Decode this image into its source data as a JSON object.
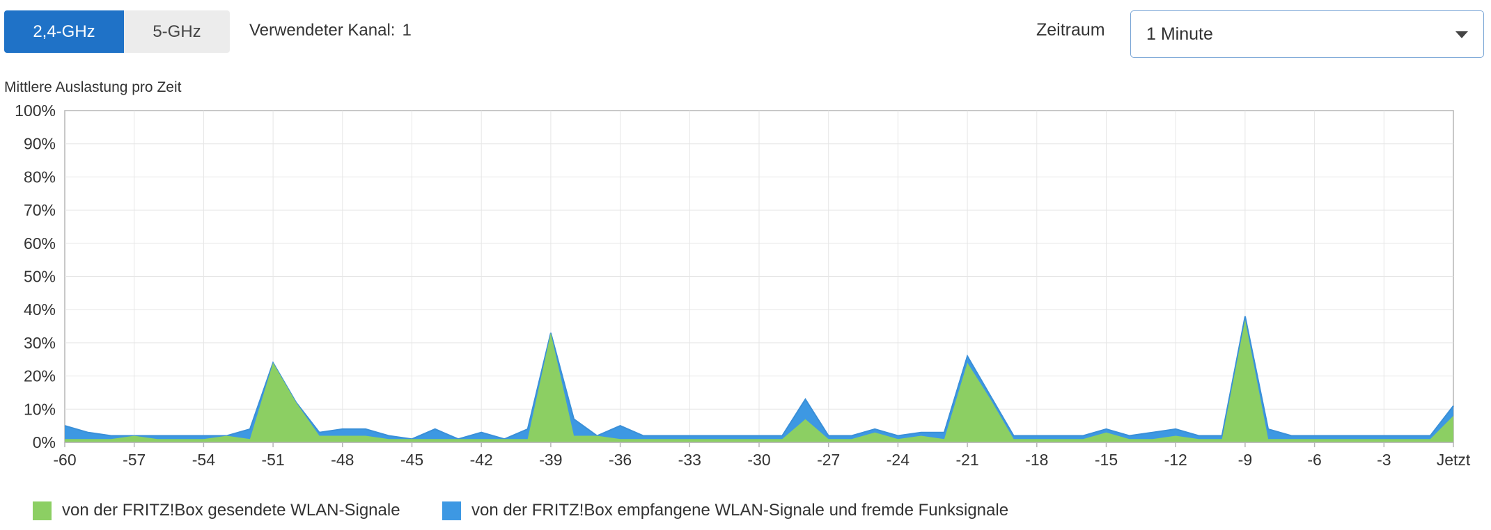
{
  "bands": {
    "active_label": "2,4-GHz",
    "inactive_label": "5-GHz"
  },
  "channel": {
    "label": "Verwendeter Kanal:",
    "value": "1"
  },
  "period": {
    "label": "Zeitraum",
    "selected": "1 Minute"
  },
  "colors": {
    "green": "#8ccf63",
    "blue": "#3d98e3",
    "blue_line": "#3a8fd8",
    "active_tab": "#1f72c7",
    "grid": "#e6e6e6",
    "axis": "#b5b5b5"
  },
  "chart_data": {
    "type": "area",
    "title": "Mittlere Auslastung pro Zeit",
    "xlim": [
      -60,
      0
    ],
    "ylim": [
      0,
      100
    ],
    "x_ticks": [
      -60,
      -57,
      -54,
      -51,
      -48,
      -45,
      -42,
      -39,
      -36,
      -33,
      -30,
      -27,
      -24,
      -21,
      -18,
      -15,
      -12,
      -9,
      -6,
      -3,
      0
    ],
    "x_tick_labels": [
      "-60",
      "-57",
      "-54",
      "-51",
      "-48",
      "-45",
      "-42",
      "-39",
      "-36",
      "-33",
      "-30",
      "-27",
      "-24",
      "-21",
      "-18",
      "-15",
      "-12",
      "-9",
      "-6",
      "-3",
      "Jetzt"
    ],
    "y_ticks": [
      0,
      10,
      20,
      30,
      40,
      50,
      60,
      70,
      80,
      90,
      100
    ],
    "y_tick_labels": [
      "0%",
      "10%",
      "20%",
      "30%",
      "40%",
      "50%",
      "60%",
      "70%",
      "80%",
      "90%",
      "100%"
    ],
    "x": [
      -60,
      -59,
      -58,
      -57,
      -56,
      -55,
      -54,
      -53,
      -52,
      -51,
      -50,
      -49,
      -48,
      -47,
      -46,
      -45,
      -44,
      -43,
      -42,
      -41,
      -40,
      -39,
      -38,
      -37,
      -36,
      -35,
      -34,
      -33,
      -32,
      -31,
      -30,
      -29,
      -28,
      -27,
      -26,
      -25,
      -24,
      -23,
      -22,
      -21,
      -20,
      -19,
      -18,
      -17,
      -16,
      -15,
      -14,
      -13,
      -12,
      -11,
      -10,
      -9,
      -8,
      -7,
      -6,
      -5,
      -4,
      -3,
      -2,
      -1,
      0
    ],
    "series": [
      {
        "name": "von der FRITZ!Box gesendete WLAN-Signale",
        "color": "#8ccf63",
        "values": [
          1,
          1,
          1,
          2,
          1,
          1,
          1,
          2,
          1,
          24,
          12,
          2,
          2,
          2,
          1,
          1,
          1,
          1,
          1,
          1,
          1,
          33,
          2,
          2,
          1,
          1,
          1,
          1,
          1,
          1,
          1,
          1,
          7,
          1,
          1,
          3,
          1,
          2,
          1,
          24,
          13,
          1,
          1,
          1,
          1,
          3,
          1,
          1,
          2,
          1,
          1,
          37,
          1,
          1,
          1,
          1,
          1,
          1,
          1,
          1,
          8
        ]
      },
      {
        "name": "von der FRITZ!Box empfangene WLAN-Signale und fremde Funksignale",
        "color": "#3d98e3",
        "values": [
          5,
          3,
          2,
          2,
          2,
          2,
          2,
          2,
          4,
          24,
          12,
          3,
          4,
          4,
          2,
          1,
          4,
          1,
          3,
          1,
          4,
          33,
          7,
          2,
          5,
          2,
          2,
          2,
          2,
          2,
          2,
          2,
          13,
          2,
          2,
          4,
          2,
          3,
          3,
          26,
          14,
          2,
          2,
          2,
          2,
          4,
          2,
          3,
          4,
          2,
          2,
          38,
          4,
          2,
          2,
          2,
          2,
          2,
          2,
          2,
          11
        ]
      }
    ],
    "stacked": false
  },
  "legend": {
    "items": [
      {
        "label": "von der FRITZ!Box gesendete WLAN-Signale"
      },
      {
        "label": "von der FRITZ!Box empfangene WLAN-Signale und fremde Funksignale"
      }
    ]
  }
}
